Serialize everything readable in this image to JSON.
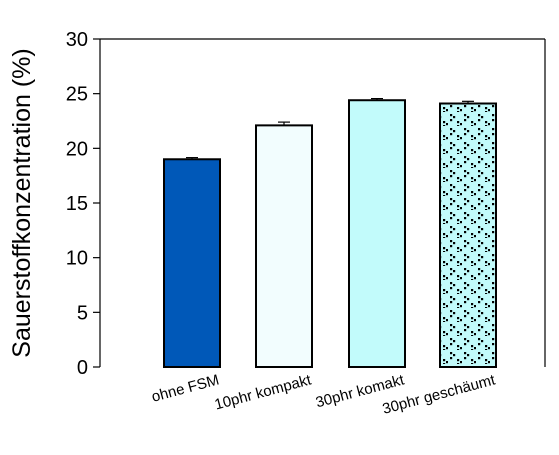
{
  "chart_data": {
    "type": "bar",
    "categories": [
      "ohne FSM",
      "10phr kompakt",
      "30phr komakt",
      "30phr geschäumt"
    ],
    "values": [
      19.0,
      22.1,
      24.4,
      24.1
    ],
    "errors": [
      0.15,
      0.3,
      0.15,
      0.2
    ],
    "fills": [
      "#0058b8",
      "#f2fdfe",
      "#c2fbfb",
      "#c2fbfb"
    ],
    "patterns": [
      "solid",
      "solid",
      "solid",
      "dots"
    ],
    "ylabel": "Sauerstoffkonzentration (%)",
    "xlabel": "",
    "ylim": [
      0,
      30
    ],
    "yticks": [
      0,
      5,
      10,
      15,
      20,
      25,
      30
    ],
    "grid": false,
    "legend": "none"
  }
}
